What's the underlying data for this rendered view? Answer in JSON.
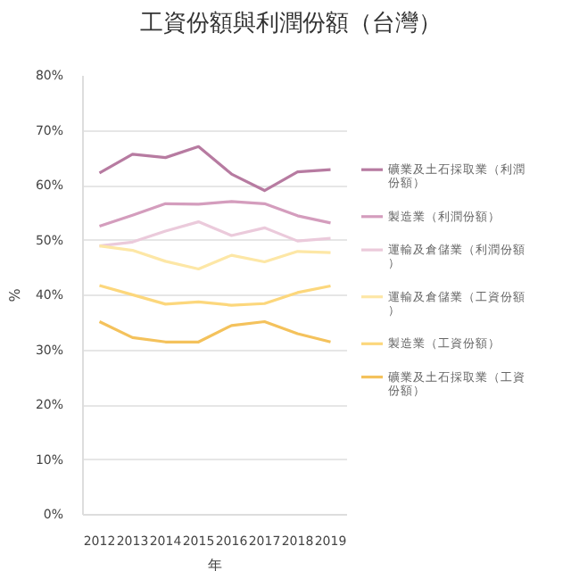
{
  "chart_data": {
    "type": "line",
    "title": "工資份額與利潤份額（台灣）",
    "xlabel": "年",
    "ylabel": "%",
    "x": [
      2012,
      2013,
      2014,
      2015,
      2016,
      2017,
      2018,
      2019
    ],
    "xlim": [
      2011.5,
      2019.5
    ],
    "xticks": [
      2012,
      2013,
      2014,
      2015,
      2016,
      2017,
      2018,
      2019
    ],
    "ylim": [
      0,
      80
    ],
    "yticks": [
      {
        "value": 0,
        "label": "0%"
      },
      {
        "value": 10,
        "label": "10%"
      },
      {
        "value": 20,
        "label": "20%"
      },
      {
        "value": 30,
        "label": "30%"
      },
      {
        "value": 40,
        "label": "40%"
      },
      {
        "value": 50,
        "label": "50%"
      },
      {
        "value": 60,
        "label": "60%"
      },
      {
        "value": 70,
        "label": "70%"
      },
      {
        "value": 80,
        "label": "80%"
      }
    ],
    "grid": "y",
    "legend": "right",
    "marker": "none",
    "line_style": "solid",
    "series": [
      {
        "name": "礦業及土石採取業（利潤份額）",
        "color": "#b77ba1",
        "values": [
          62.3,
          65.7,
          65.1,
          67.1,
          62.1,
          59.1,
          62.5,
          62.9
        ]
      },
      {
        "name": "製造業（利潤份額）",
        "color": "#d49dbd",
        "values": [
          52.6,
          54.6,
          56.7,
          56.6,
          57.1,
          56.7,
          54.5,
          53.2
        ]
      },
      {
        "name": "運輸及倉儲業（利潤份額）",
        "color": "#ebcadb",
        "values": [
          49.0,
          49.7,
          51.7,
          53.4,
          50.9,
          52.3,
          49.9,
          50.4
        ]
      },
      {
        "name": "運輸及倉儲業（工資份額）",
        "color": "#fde7a6",
        "values": [
          49.0,
          48.2,
          46.2,
          44.8,
          47.3,
          46.1,
          48.0,
          47.8
        ]
      },
      {
        "name": "製造業（工資份額）",
        "color": "#fcd77c",
        "values": [
          41.8,
          40.1,
          38.4,
          38.8,
          38.2,
          38.5,
          40.5,
          41.7
        ]
      },
      {
        "name": "礦業及土石採取業（工資份額）",
        "color": "#f4c25c",
        "values": [
          35.2,
          32.3,
          31.5,
          31.5,
          34.5,
          35.2,
          33.0,
          31.5
        ]
      }
    ]
  }
}
